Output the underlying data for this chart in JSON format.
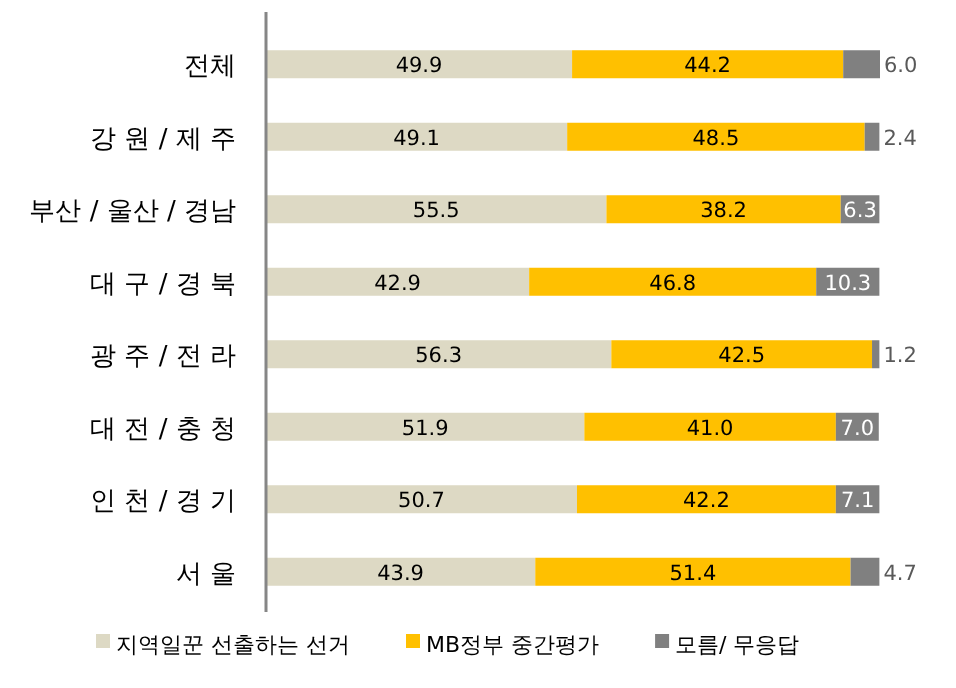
{
  "chart_data": {
    "type": "bar",
    "orientation": "horizontal",
    "stacked": true,
    "tick_labels": "y",
    "legend": "bottom",
    "categories": [
      "전체",
      "강 원 / 제 주",
      "부산 / 울산 / 경남",
      "대 구 / 경 북",
      "광 주 / 전 라",
      "대 전 / 충 청",
      "인 천 / 경 기",
      "서 울"
    ],
    "series": [
      {
        "name": "지역일꾼 선출하는 선거",
        "color": "#ddd9c4",
        "values": [
          49.9,
          49.1,
          55.5,
          42.9,
          56.3,
          51.9,
          50.7,
          43.9
        ],
        "value_labels": [
          "49.9",
          "49.1",
          "55.5",
          "42.9",
          "56.3",
          "51.9",
          "50.7",
          "43.9"
        ]
      },
      {
        "name": "MB정부 중간평가",
        "color": "#ffc000",
        "values": [
          44.2,
          48.5,
          38.2,
          46.8,
          42.5,
          41.0,
          42.2,
          51.4
        ],
        "value_labels": [
          "44.2",
          "48.5",
          "38.2",
          "46.8",
          "42.5",
          "41.0",
          "42.2",
          "51.4"
        ]
      },
      {
        "name": "모름/ 무응답",
        "color": "#808080",
        "values": [
          6.0,
          2.4,
          6.3,
          10.3,
          1.2,
          7.0,
          7.1,
          4.7
        ],
        "value_labels": [
          "6.0",
          "2.4",
          "6.3",
          "10.3",
          "1.2",
          "7.0",
          "7.1",
          "4.7"
        ]
      }
    ]
  }
}
